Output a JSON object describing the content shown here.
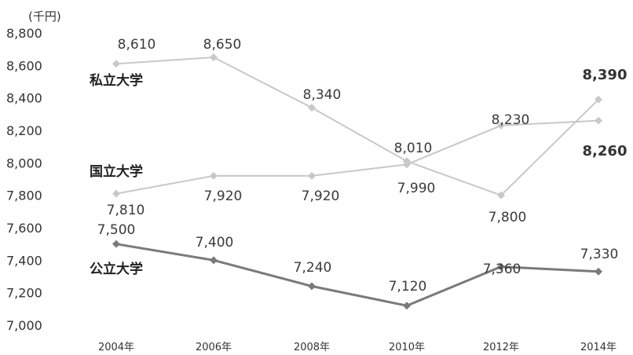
{
  "chart_data": {
    "type": "line",
    "unit_label": "(千円)",
    "categories": [
      "2004年",
      "2006年",
      "2008年",
      "2010年",
      "2012年",
      "2014年"
    ],
    "yticks": [
      "7,000",
      "7,200",
      "7,400",
      "7,600",
      "7,800",
      "8,000",
      "8,200",
      "8,400",
      "8,600",
      "8,800"
    ],
    "ylim": [
      7000,
      8800
    ],
    "grid": false,
    "series": [
      {
        "name": "私立大学",
        "color": "#c8c8c8",
        "values": [
          8610,
          8650,
          8340,
          8010,
          7800,
          8390
        ],
        "labels": [
          "8,610",
          "8,650",
          "8,340",
          "8,010",
          "7,800",
          "8,390"
        ]
      },
      {
        "name": "国立大学",
        "color": "#c8c8c8",
        "values": [
          7810,
          7920,
          7920,
          7990,
          8230,
          8260
        ],
        "labels": [
          "7,810",
          "7,920",
          "7,920",
          "7,990",
          "8,230",
          "8,260"
        ]
      },
      {
        "name": "公立大学",
        "color": "#7a7a7a",
        "values": [
          7500,
          7400,
          7240,
          7120,
          7360,
          7330
        ],
        "labels": [
          "7,500",
          "7,400",
          "7,240",
          "7,120",
          "7,360",
          "7,330"
        ]
      }
    ]
  }
}
